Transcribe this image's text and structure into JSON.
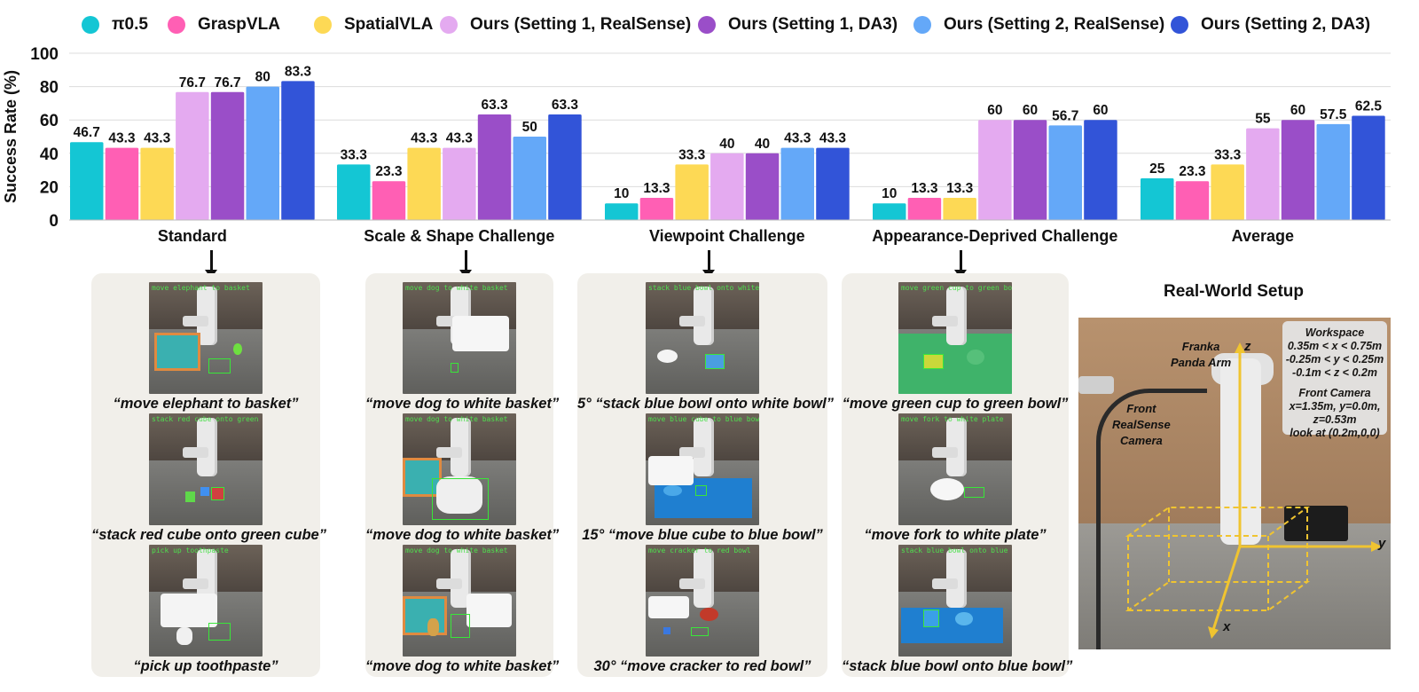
{
  "legend": [
    {
      "label": "π0.5",
      "color": "#14c6d4"
    },
    {
      "label": "GraspVLA",
      "color": "#ff5fb4"
    },
    {
      "label": "SpatialVLA",
      "color": "#fdd955"
    },
    {
      "label": "Ours (Setting 1, RealSense)",
      "color": "#e4aaf0"
    },
    {
      "label": "Ours (Setting 1, DA3)",
      "color": "#9a4ec8"
    },
    {
      "label": "Ours (Setting 2, RealSense)",
      "color": "#64a8f8"
    },
    {
      "label": "Ours (Setting 2, DA3)",
      "color": "#3254d8"
    }
  ],
  "chart_data": {
    "type": "bar",
    "ylabel": "Success Rate (%)",
    "ylim": [
      0,
      100
    ],
    "yticks": [
      "0",
      "20",
      "40",
      "60",
      "80",
      "100"
    ],
    "grid": true,
    "legend_position": "top",
    "categories": [
      "Standard",
      "Scale & Shape Challenge",
      "Viewpoint Challenge",
      "Appearance-Deprived Challenge",
      "Average"
    ],
    "series": [
      {
        "name": "π0.5",
        "values": [
          46.7,
          33.3,
          10,
          10,
          25
        ]
      },
      {
        "name": "GraspVLA",
        "values": [
          43.3,
          23.3,
          13.3,
          13.3,
          23.3
        ]
      },
      {
        "name": "SpatialVLA",
        "values": [
          43.3,
          43.3,
          33.3,
          13.3,
          33.3
        ]
      },
      {
        "name": "Ours (Setting 1, RealSense)",
        "values": [
          76.7,
          43.3,
          40,
          60,
          55
        ]
      },
      {
        "name": "Ours (Setting 1, DA3)",
        "values": [
          76.7,
          63.3,
          40,
          60,
          60
        ]
      },
      {
        "name": "Ours (Setting 2, RealSense)",
        "values": [
          80,
          50,
          43.3,
          56.7,
          57.5
        ]
      },
      {
        "name": "Ours (Setting 2, DA3)",
        "values": [
          83.3,
          63.3,
          43.3,
          60,
          62.5
        ]
      }
    ],
    "value_labels": [
      [
        "46.7",
        "33.3",
        "10",
        "10",
        "25"
      ],
      [
        "43.3",
        "23.3",
        "13.3",
        "13.3",
        "23.3"
      ],
      [
        "43.3",
        "43.3",
        "33.3",
        "13.3",
        "33.3"
      ],
      [
        "76.7",
        "43.3",
        "40",
        "60",
        "55"
      ],
      [
        "76.7",
        "63.3",
        "40",
        "60",
        "60"
      ],
      [
        "80",
        "50",
        "43.3",
        "56.7",
        "57.5"
      ],
      [
        "83.3",
        "63.3",
        "43.3",
        "60",
        "62.5"
      ]
    ]
  },
  "panels": [
    {
      "examples": [
        {
          "caption": "“move elephant to basket”",
          "overlay": "move elephant to basket"
        },
        {
          "caption": "“stack red cube onto green cube”",
          "overlay": "stack red cube onto green cube"
        },
        {
          "caption": "“pick up toothpaste”",
          "overlay": "pick up toothpaste"
        }
      ]
    },
    {
      "examples": [
        {
          "caption": "“move dog to white basket”",
          "overlay": "move dog to white basket"
        },
        {
          "caption": "“move dog to white basket”",
          "overlay": "move dog to white basket"
        },
        {
          "caption": "“move dog to white basket”",
          "overlay": "move dog to white basket"
        }
      ]
    },
    {
      "examples": [
        {
          "caption": "5° “stack blue bowl onto white bowl”",
          "overlay": "stack blue bowl onto white bowl"
        },
        {
          "caption": "15° “move blue cube to blue bowl”",
          "overlay": "move blue cube to blue bowl"
        },
        {
          "caption": "30° “move cracker to red bowl”",
          "overlay": "move cracker to red bowl"
        }
      ]
    },
    {
      "examples": [
        {
          "caption": "“move green cup to green bowl”",
          "overlay": "move green cup to green bowl"
        },
        {
          "caption": "“move fork to white plate”",
          "overlay": "move fork to white plate"
        },
        {
          "caption": "“stack blue bowl onto blue bowl”",
          "overlay": "stack blue bowl onto blue bowl"
        }
      ]
    }
  ],
  "setup": {
    "title": "Real-World Setup",
    "workspace_title": "Workspace",
    "workspace_lines": [
      "0.35m < x < 0.75m",
      "-0.25m < y < 0.25m",
      "-0.1m < z < 0.2m"
    ],
    "front_camera_title": "Front Camera",
    "front_camera_lines": [
      "x=1.35m, y=0.0m,",
      "z=0.53m",
      "look at (0.2m,0,0)"
    ],
    "arm_label_lines": [
      "Franka",
      "Panda Arm"
    ],
    "camera_label_lines": [
      "Front",
      "RealSense",
      "Camera"
    ],
    "axis_z": "z",
    "axis_y": "y",
    "axis_x": "x"
  }
}
